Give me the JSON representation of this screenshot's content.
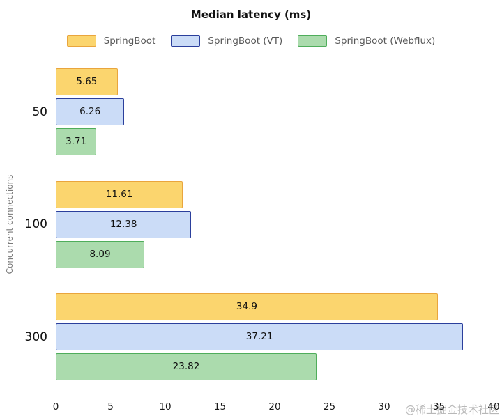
{
  "page": {
    "watermark": "@稀土掘金技术社区"
  },
  "chart_data": {
    "type": "bar",
    "orientation": "horizontal",
    "title": "Median latency (ms)",
    "xlabel": "",
    "ylabel": "Concurrent connections",
    "categories": [
      "50",
      "100",
      "300"
    ],
    "series": [
      {
        "name": "SpringBoot",
        "values": [
          5.65,
          11.61,
          34.9
        ],
        "fill": "#fbd56e",
        "border": "#e9a53d"
      },
      {
        "name": "SpringBoot (VT)",
        "values": [
          6.26,
          12.38,
          37.21
        ],
        "fill": "#cbdcf7",
        "border": "#2b3f9c"
      },
      {
        "name": "SpringBoot (Webflux)",
        "values": [
          3.71,
          8.09,
          23.82
        ],
        "fill": "#abdbad",
        "border": "#4fad5b"
      }
    ],
    "xlim": [
      0,
      40
    ],
    "xticks": [
      0,
      5,
      10,
      15,
      20,
      25,
      30,
      35,
      40
    ],
    "value_labels": true,
    "grid": false,
    "legend_position": "top-center"
  }
}
